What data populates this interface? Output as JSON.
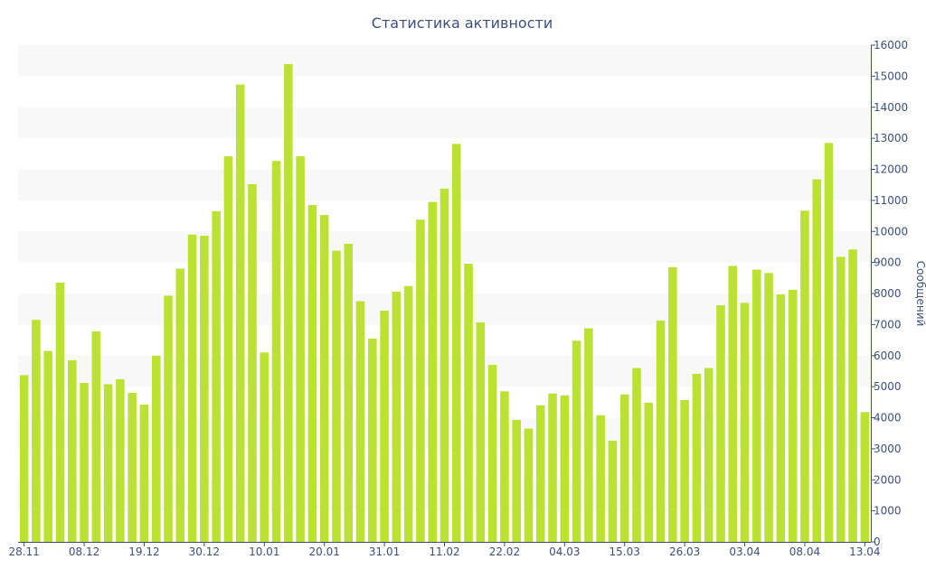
{
  "chart_data": {
    "type": "bar",
    "title": "Статистика активности",
    "xlabel": "",
    "ylabel": "Сообщений",
    "ylim": [
      0,
      16000
    ],
    "y_ticks": [
      "0",
      "1000",
      "2000",
      "3000",
      "4000",
      "5000",
      "6000",
      "7000",
      "8000",
      "9000",
      "10000",
      "11000",
      "12000",
      "13000",
      "14000",
      "15000",
      "16000"
    ],
    "x_tick_labels": [
      {
        "label": "28.11",
        "at": 0
      },
      {
        "label": "08.12",
        "at": 5
      },
      {
        "label": "19.12",
        "at": 10
      },
      {
        "label": "30.12",
        "at": 15
      },
      {
        "label": "10.01",
        "at": 20
      },
      {
        "label": "20.01",
        "at": 25
      },
      {
        "label": "31.01",
        "at": 30
      },
      {
        "label": "11.02",
        "at": 35
      },
      {
        "label": "22.02",
        "at": 40
      },
      {
        "label": "04.03",
        "at": 45
      },
      {
        "label": "15.03",
        "at": 50
      },
      {
        "label": "26.03",
        "at": 55
      },
      {
        "label": "03.04",
        "at": 60
      },
      {
        "label": "08.04",
        "at": 65
      },
      {
        "label": "13.04",
        "at": 70
      }
    ],
    "values": [
      5370,
      7150,
      6150,
      8350,
      5850,
      5120,
      6780,
      5080,
      5240,
      4800,
      4420,
      6000,
      7930,
      8800,
      9900,
      9860,
      10650,
      12420,
      14730,
      11520,
      6100,
      12270,
      15390,
      12420,
      10850,
      10530,
      9380,
      9600,
      7750,
      6550,
      7450,
      8060,
      8240,
      10380,
      10950,
      11380,
      12820,
      8960,
      7070,
      5700,
      4850,
      3930,
      3650,
      4400,
      4780,
      4720,
      6480,
      6880,
      4080,
      3260,
      4750,
      5600,
      4480,
      7130,
      8850,
      4570,
      5410,
      5600,
      7620,
      8890,
      7700,
      8770,
      8660,
      7970,
      8120,
      10670,
      11680,
      12850,
      9180,
      9420,
      4180
    ],
    "grid": true,
    "legend": "none",
    "colors": {
      "bar": "#bbe233",
      "band": "#f8f8f8",
      "axis": "#3d4f7e",
      "text": "#3d4f7e"
    }
  }
}
